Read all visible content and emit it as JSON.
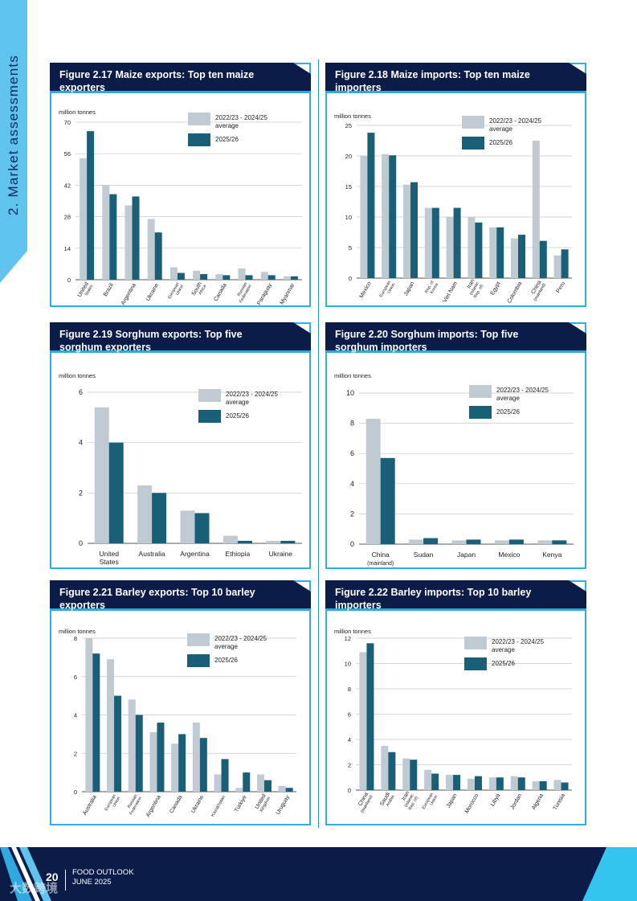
{
  "sidebar": {
    "section_label": "2. Market assessments",
    "colors": {
      "tab": "#5fc3ee"
    }
  },
  "footer": {
    "page_number": "20",
    "publication": "FOOD OUTLOOK",
    "date": "JUNE 2025",
    "watermark": "大数跨境"
  },
  "legend": {
    "series_avg": "2022/23 - 2024/25\naverage",
    "series_current": "2025/26"
  },
  "colors": {
    "avg": "#c0cad3",
    "current": "#1a5f78",
    "header": "#0b1c48",
    "border": "#33aee5"
  },
  "chart_data": [
    {
      "id": "fig-2-17",
      "type": "bar",
      "title": "Figure 2.17 Maize exports: Top ten maize exporters",
      "ylabel": "million tonnes",
      "ylim": [
        0,
        70
      ],
      "yticks": [
        0,
        14,
        28,
        42,
        56,
        70
      ],
      "categories": [
        "United\nStates",
        "Brazil",
        "Argentina",
        "Ukraine",
        "European\nUnion",
        "South\nAfrica",
        "Canada",
        "Russian\nFederation",
        "Paraguay",
        "Myanmar"
      ],
      "series": [
        {
          "name": "2022/23 - 2024/25 average",
          "values": [
            54,
            42,
            33,
            27,
            5.5,
            4,
            2.5,
            5,
            3.5,
            1.5
          ]
        },
        {
          "name": "2025/26",
          "values": [
            66,
            38,
            37,
            21,
            3,
            2.5,
            2,
            2,
            2,
            1.5
          ]
        }
      ]
    },
    {
      "id": "fig-2-18",
      "type": "bar",
      "title": "Figure 2.18 Maize imports: Top ten maize importers",
      "ylabel": "million tonnes",
      "ylim": [
        0,
        25
      ],
      "yticks": [
        0,
        5,
        10,
        15,
        20,
        25
      ],
      "categories": [
        "Mexico",
        "European\nUnion",
        "Japan",
        "Rep. of\nKorea",
        "Viet Nam",
        "Iran\n(Islamic\nRep. of)",
        "Egypt",
        "Colombia",
        "China\n(mainland)",
        "Peru"
      ],
      "series": [
        {
          "name": "2022/23 - 2024/25 average",
          "values": [
            20,
            20.3,
            15.3,
            11.5,
            10,
            10,
            8.3,
            6.5,
            22.5,
            3.7
          ]
        },
        {
          "name": "2025/26",
          "values": [
            23.8,
            20.1,
            15.7,
            11.5,
            11.5,
            9.1,
            8.3,
            7.1,
            6.1,
            4.7
          ]
        }
      ]
    },
    {
      "id": "fig-2-19",
      "type": "bar",
      "title": "Figure 2.19 Sorghum exports: Top five sorghum exporters",
      "ylabel": "million tonnes",
      "ylim": [
        0,
        6
      ],
      "yticks": [
        0,
        2,
        4,
        6
      ],
      "categories": [
        "United\nStates",
        "Australia",
        "Argentina",
        "Ethiopia",
        "Ukraine"
      ],
      "series": [
        {
          "name": "2022/23 - 2024/25 average",
          "values": [
            5.4,
            2.3,
            1.3,
            0.3,
            0.1
          ]
        },
        {
          "name": "2025/26",
          "values": [
            4,
            2,
            1.2,
            0.1,
            0.1
          ]
        }
      ]
    },
    {
      "id": "fig-2-20",
      "type": "bar",
      "title": "Figure 2.20 Sorghum imports: Top five sorghum importers",
      "ylabel": "million tonnes",
      "ylim": [
        0,
        10
      ],
      "yticks": [
        0,
        2,
        4,
        6,
        8,
        10
      ],
      "categories": [
        "China\n(mainland)",
        "Sudan",
        "Japan",
        "Mexico",
        "Kenya"
      ],
      "series": [
        {
          "name": "2022/23 - 2024/25 average",
          "values": [
            8.3,
            0.3,
            0.25,
            0.25,
            0.25
          ]
        },
        {
          "name": "2025/26",
          "values": [
            5.7,
            0.4,
            0.3,
            0.3,
            0.25
          ]
        }
      ]
    },
    {
      "id": "fig-2-21",
      "type": "bar",
      "title": "Figure 2.21 Barley exports: Top 10 barley exporters",
      "ylabel": "million tonnes",
      "ylim": [
        0,
        8
      ],
      "yticks": [
        0,
        2,
        4,
        6,
        8
      ],
      "categories": [
        "Australia",
        "European\nUnion",
        "Russian\nFederation",
        "Argentina",
        "Canada",
        "Ukraine",
        "Kazakhstan",
        "Türkiye",
        "United\nKingdom",
        "Uruguay"
      ],
      "series": [
        {
          "name": "2022/23 - 2024/25 average",
          "values": [
            8,
            6.9,
            4.8,
            3.1,
            2.5,
            3.6,
            0.9,
            0.2,
            0.9,
            0.3
          ]
        },
        {
          "name": "2025/26",
          "values": [
            7.2,
            5,
            4,
            3.6,
            3,
            2.8,
            1.7,
            1,
            0.6,
            0.2
          ]
        }
      ]
    },
    {
      "id": "fig-2-22",
      "type": "bar",
      "title": "Figure 2.22 Barley imports: Top 10 barley importers",
      "ylabel": "million tonnes",
      "ylim": [
        0,
        12
      ],
      "yticks": [
        0,
        2,
        4,
        6,
        8,
        10,
        12
      ],
      "categories": [
        "China\n(mainland)",
        "Saudi\nArabia",
        "Iran\n(Islamic\nRep. of)",
        "European\nUnion",
        "Japan",
        "Morocco",
        "Libya",
        "Jordan",
        "Algeria",
        "Tunisia"
      ],
      "series": [
        {
          "name": "2022/23 - 2024/25 average",
          "values": [
            10.9,
            3.5,
            2.5,
            1.6,
            1.2,
            0.9,
            1,
            1.1,
            0.7,
            0.8
          ]
        },
        {
          "name": "2025/26",
          "values": [
            11.6,
            3,
            2.4,
            1.3,
            1.2,
            1.1,
            1,
            1,
            0.7,
            0.6
          ]
        }
      ]
    }
  ]
}
